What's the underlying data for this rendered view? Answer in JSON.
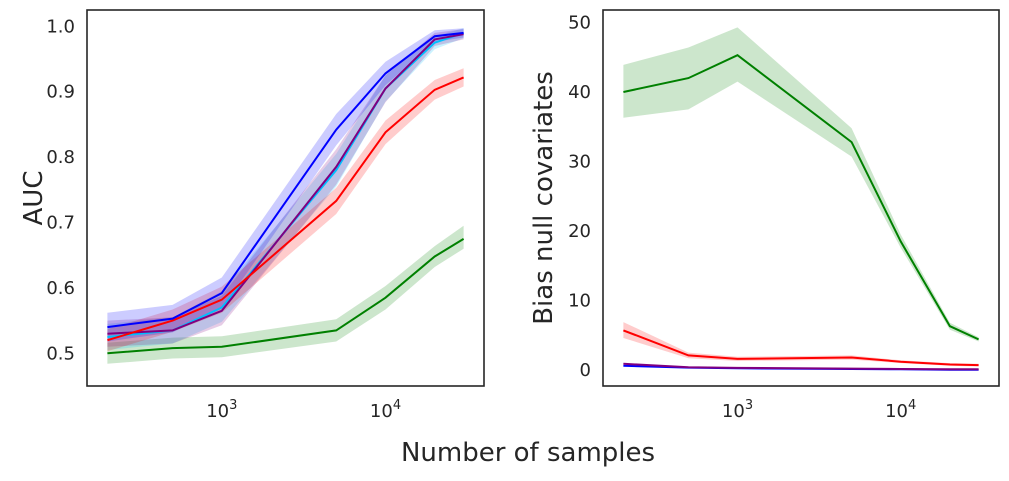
{
  "figure": {
    "xlabel": "Number of samples"
  },
  "chart_data": [
    {
      "type": "line",
      "title": "",
      "xlabel": "Number of samples",
      "ylabel": "AUC",
      "xscale": "log",
      "xlim": [
        150,
        40000
      ],
      "ylim": [
        0.45,
        1.025
      ],
      "x_ticks": [
        {
          "value": 1000,
          "base": "10",
          "exp": "3"
        },
        {
          "value": 10000,
          "base": "10",
          "exp": "4"
        }
      ],
      "y_ticks": [
        {
          "value": 0.5,
          "label": "0.5"
        },
        {
          "value": 0.6,
          "label": "0.6"
        },
        {
          "value": 0.7,
          "label": "0.7"
        },
        {
          "value": 0.8,
          "label": "0.8"
        },
        {
          "value": 0.9,
          "label": "0.9"
        },
        {
          "value": 1.0,
          "label": "1.0"
        }
      ],
      "x": [
        200,
        500,
        1000,
        5000,
        10000,
        20000,
        30000
      ],
      "series": [
        {
          "name": "green",
          "color": "#008000",
          "values": [
            0.5,
            0.508,
            0.51,
            0.535,
            0.585,
            0.648,
            0.675
          ],
          "lower": [
            0.484,
            0.492,
            0.494,
            0.518,
            0.567,
            0.632,
            0.66
          ],
          "upper": [
            0.516,
            0.524,
            0.526,
            0.552,
            0.603,
            0.664,
            0.695
          ]
        },
        {
          "name": "cyan",
          "color": "#00bfff",
          "values": [
            0.525,
            0.535,
            0.57,
            0.78,
            0.905,
            0.975,
            0.99
          ],
          "lower": [
            0.505,
            0.515,
            0.548,
            0.755,
            0.885,
            0.965,
            0.982
          ],
          "upper": [
            0.545,
            0.555,
            0.595,
            0.805,
            0.925,
            0.985,
            0.997
          ]
        },
        {
          "name": "purple",
          "color": "#800080",
          "values": [
            0.53,
            0.535,
            0.565,
            0.785,
            0.905,
            0.98,
            0.988
          ],
          "lower": [
            0.51,
            0.515,
            0.543,
            0.758,
            0.884,
            0.97,
            0.98
          ],
          "upper": [
            0.55,
            0.555,
            0.588,
            0.812,
            0.925,
            0.99,
            0.996
          ]
        },
        {
          "name": "red",
          "color": "#ff0000",
          "values": [
            0.52,
            0.55,
            0.582,
            0.733,
            0.838,
            0.903,
            0.922
          ],
          "lower": [
            0.503,
            0.533,
            0.562,
            0.713,
            0.82,
            0.888,
            0.908
          ],
          "upper": [
            0.537,
            0.567,
            0.602,
            0.753,
            0.856,
            0.918,
            0.936
          ]
        },
        {
          "name": "blue",
          "color": "#0000ff",
          "values": [
            0.54,
            0.553,
            0.592,
            0.842,
            0.928,
            0.985,
            0.99
          ],
          "lower": [
            0.518,
            0.532,
            0.568,
            0.818,
            0.91,
            0.976,
            0.983
          ],
          "upper": [
            0.562,
            0.574,
            0.616,
            0.866,
            0.946,
            0.994,
            0.997
          ]
        }
      ]
    },
    {
      "type": "line",
      "title": "",
      "xlabel": "Number of samples",
      "ylabel": "Bias null covariates",
      "xscale": "log",
      "xlim": [
        150,
        40000
      ],
      "ylim": [
        -2.3,
        51.8
      ],
      "x_ticks": [
        {
          "value": 1000,
          "base": "10",
          "exp": "3"
        },
        {
          "value": 10000,
          "base": "10",
          "exp": "4"
        }
      ],
      "y_ticks": [
        {
          "value": 0,
          "label": "0"
        },
        {
          "value": 10,
          "label": "10"
        },
        {
          "value": 20,
          "label": "20"
        },
        {
          "value": 30,
          "label": "30"
        },
        {
          "value": 40,
          "label": "40"
        },
        {
          "value": 50,
          "label": "50"
        }
      ],
      "x": [
        200,
        500,
        1000,
        5000,
        10000,
        20000,
        30000
      ],
      "series": [
        {
          "name": "green",
          "color": "#008000",
          "values": [
            40.0,
            42.0,
            45.3,
            32.8,
            18.5,
            6.3,
            4.4
          ],
          "lower": [
            36.3,
            37.5,
            41.5,
            30.7,
            17.6,
            5.8,
            4.1
          ],
          "upper": [
            43.9,
            46.4,
            49.3,
            34.8,
            19.5,
            6.8,
            4.7
          ]
        },
        {
          "name": "red",
          "color": "#ff0000",
          "values": [
            5.7,
            2.1,
            1.6,
            1.8,
            1.2,
            0.8,
            0.7
          ],
          "lower": [
            4.6,
            1.7,
            1.3,
            1.5,
            1.0,
            0.6,
            0.5
          ],
          "upper": [
            6.9,
            2.5,
            1.9,
            2.1,
            1.4,
            1.0,
            0.9
          ]
        },
        {
          "name": "blue",
          "color": "#0000ff",
          "values": [
            0.6,
            0.35,
            0.25,
            0.15,
            0.1,
            0.05,
            0.05
          ],
          "lower": [
            0.5,
            0.3,
            0.2,
            0.1,
            0.08,
            0.03,
            0.03
          ],
          "upper": [
            0.7,
            0.4,
            0.3,
            0.2,
            0.12,
            0.07,
            0.07
          ]
        },
        {
          "name": "purple",
          "color": "#800080",
          "values": [
            0.9,
            0.4,
            0.3,
            0.2,
            0.15,
            0.1,
            0.1
          ],
          "lower": [
            0.8,
            0.35,
            0.25,
            0.15,
            0.12,
            0.08,
            0.08
          ],
          "upper": [
            1.0,
            0.45,
            0.35,
            0.25,
            0.18,
            0.12,
            0.12
          ]
        }
      ]
    }
  ]
}
